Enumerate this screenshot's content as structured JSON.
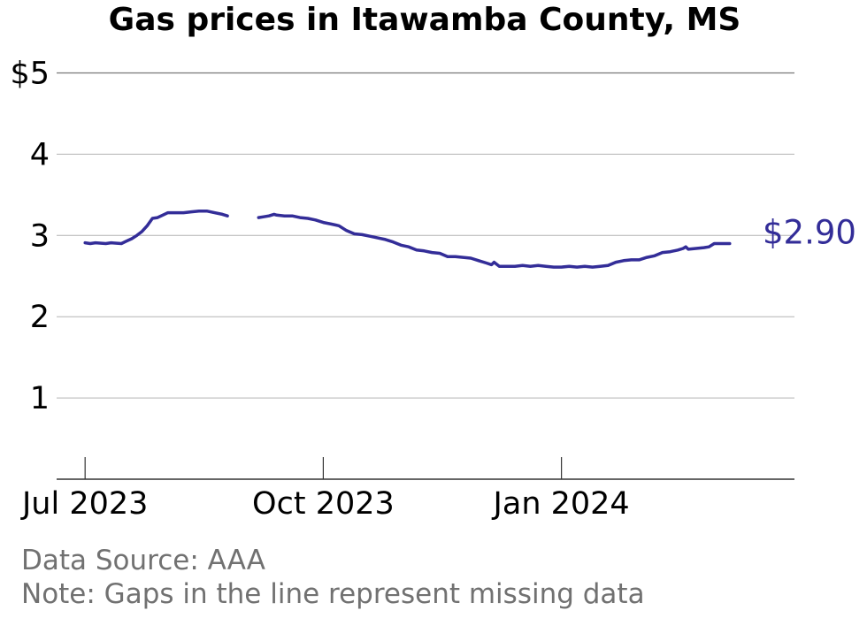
{
  "chart_data": {
    "type": "line",
    "title": "Gas prices in Itawamba County, MS",
    "xlabel": "",
    "ylabel": "",
    "ylim": [
      0,
      5
    ],
    "y_ticks": [
      {
        "value": 5,
        "label": "$5"
      },
      {
        "value": 4,
        "label": "4"
      },
      {
        "value": 3,
        "label": "3"
      },
      {
        "value": 2,
        "label": "2"
      },
      {
        "value": 1,
        "label": "1"
      }
    ],
    "x_ticks": [
      {
        "date": "2023-07-01",
        "label": "Jul 2023"
      },
      {
        "date": "2023-10-01",
        "label": "Oct 2023"
      },
      {
        "date": "2024-01-01",
        "label": "Jan 2024"
      }
    ],
    "x_range": [
      "2023-06-20",
      "2024-03-31"
    ],
    "grid": true,
    "line_color": "#332d98",
    "end_label": "$2.90",
    "series": [
      {
        "segments": [
          [
            [
              "2023-07-01",
              2.91
            ],
            [
              "2023-07-03",
              2.9
            ],
            [
              "2023-07-05",
              2.91
            ],
            [
              "2023-07-09",
              2.9
            ],
            [
              "2023-07-11",
              2.91
            ],
            [
              "2023-07-15",
              2.9
            ],
            [
              "2023-07-17",
              2.93
            ],
            [
              "2023-07-19",
              2.96
            ],
            [
              "2023-07-21",
              3.0
            ],
            [
              "2023-07-23",
              3.05
            ],
            [
              "2023-07-25",
              3.12
            ],
            [
              "2023-07-27",
              3.21
            ],
            [
              "2023-07-29",
              3.22
            ],
            [
              "2023-07-31",
              3.25
            ],
            [
              "2023-08-02",
              3.28
            ],
            [
              "2023-08-05",
              3.28
            ],
            [
              "2023-08-08",
              3.28
            ],
            [
              "2023-08-11",
              3.29
            ],
            [
              "2023-08-14",
              3.3
            ],
            [
              "2023-08-17",
              3.3
            ],
            [
              "2023-08-20",
              3.28
            ],
            [
              "2023-08-23",
              3.26
            ],
            [
              "2023-08-25",
              3.24
            ]
          ],
          [
            [
              "2023-09-06",
              3.22
            ],
            [
              "2023-09-08",
              3.23
            ],
            [
              "2023-09-10",
              3.24
            ],
            [
              "2023-09-12",
              3.26
            ],
            [
              "2023-09-13",
              3.25
            ],
            [
              "2023-09-16",
              3.24
            ],
            [
              "2023-09-19",
              3.24
            ],
            [
              "2023-09-22",
              3.22
            ],
            [
              "2023-09-25",
              3.21
            ],
            [
              "2023-09-28",
              3.19
            ],
            [
              "2023-10-01",
              3.16
            ],
            [
              "2023-10-04",
              3.14
            ],
            [
              "2023-10-07",
              3.12
            ],
            [
              "2023-10-10",
              3.06
            ],
            [
              "2023-10-13",
              3.02
            ],
            [
              "2023-10-16",
              3.01
            ],
            [
              "2023-10-19",
              2.99
            ],
            [
              "2023-10-22",
              2.97
            ],
            [
              "2023-10-25",
              2.95
            ],
            [
              "2023-10-28",
              2.92
            ],
            [
              "2023-10-31",
              2.88
            ],
            [
              "2023-11-03",
              2.86
            ],
            [
              "2023-11-06",
              2.82
            ],
            [
              "2023-11-09",
              2.81
            ],
            [
              "2023-11-12",
              2.79
            ],
            [
              "2023-11-15",
              2.78
            ],
            [
              "2023-11-18",
              2.74
            ],
            [
              "2023-11-21",
              2.74
            ],
            [
              "2023-11-24",
              2.73
            ],
            [
              "2023-11-27",
              2.72
            ],
            [
              "2023-11-30",
              2.69
            ],
            [
              "2023-12-03",
              2.66
            ],
            [
              "2023-12-05",
              2.64
            ],
            [
              "2023-12-06",
              2.67
            ],
            [
              "2023-12-08",
              2.62
            ],
            [
              "2023-12-11",
              2.62
            ],
            [
              "2023-12-14",
              2.62
            ],
            [
              "2023-12-17",
              2.63
            ],
            [
              "2023-12-20",
              2.62
            ],
            [
              "2023-12-23",
              2.63
            ],
            [
              "2023-12-26",
              2.62
            ],
            [
              "2023-12-29",
              2.61
            ],
            [
              "2024-01-01",
              2.61
            ],
            [
              "2024-01-04",
              2.62
            ],
            [
              "2024-01-07",
              2.61
            ],
            [
              "2024-01-10",
              2.62
            ],
            [
              "2024-01-13",
              2.61
            ],
            [
              "2024-01-16",
              2.62
            ],
            [
              "2024-01-19",
              2.63
            ],
            [
              "2024-01-22",
              2.67
            ],
            [
              "2024-01-25",
              2.69
            ],
            [
              "2024-01-28",
              2.7
            ],
            [
              "2024-01-31",
              2.7
            ],
            [
              "2024-02-03",
              2.73
            ],
            [
              "2024-02-06",
              2.75
            ],
            [
              "2024-02-09",
              2.79
            ],
            [
              "2024-02-12",
              2.8
            ],
            [
              "2024-02-15",
              2.82
            ],
            [
              "2024-02-17",
              2.84
            ],
            [
              "2024-02-18",
              2.86
            ],
            [
              "2024-02-19",
              2.83
            ],
            [
              "2024-02-22",
              2.84
            ],
            [
              "2024-02-25",
              2.85
            ],
            [
              "2024-02-27",
              2.86
            ],
            [
              "2024-02-29",
              2.9
            ],
            [
              "2024-03-03",
              2.9
            ],
            [
              "2024-03-06",
              2.9
            ]
          ]
        ]
      }
    ]
  },
  "footer": {
    "source": "Data Source: AAA",
    "note": "Note: Gaps in the line represent missing data"
  }
}
